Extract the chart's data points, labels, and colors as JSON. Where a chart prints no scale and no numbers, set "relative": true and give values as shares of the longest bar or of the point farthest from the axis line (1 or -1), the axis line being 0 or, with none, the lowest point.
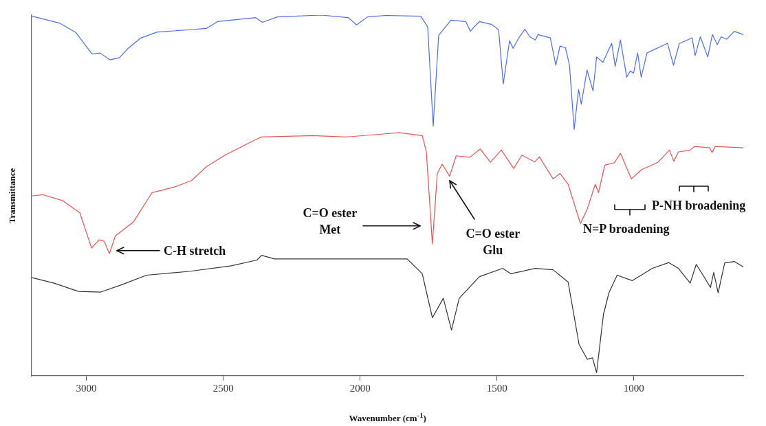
{
  "chart_data": {
    "type": "line",
    "relative": true,
    "xlabel": "Wavenumber (cm$^{-1}$)",
    "ylabel": "Transmittance",
    "xlim": [
      3200,
      600
    ],
    "xticks": [
      3000,
      2500,
      2000,
      1500,
      1000
    ],
    "tick_labels": "x",
    "grid": false,
    "legend": false,
    "marker": "none",
    "line_style": "solid",
    "series": [
      {
        "color": "#4a6cf7",
        "x": [
          3198,
          3098,
          3039,
          2979,
          2950,
          2914,
          2879,
          2849,
          2800,
          2741,
          2630,
          2562,
          2521,
          2382,
          2357,
          2302,
          2143,
          2043,
          2013,
          1973,
          1907,
          1778,
          1753,
          1733,
          1713,
          1668,
          1614,
          1597,
          1584,
          1564,
          1519,
          1494,
          1477,
          1454,
          1441,
          1420,
          1398,
          1380,
          1360,
          1350,
          1305,
          1285,
          1270,
          1250,
          1235,
          1218,
          1202,
          1192,
          1171,
          1149,
          1136,
          1113,
          1081,
          1068,
          1049,
          1026,
          1013,
          1001,
          986,
          973,
          952,
          877,
          855,
          834,
          787,
          776,
          757,
          730,
          713,
          695,
          681,
          661,
          633,
          600
        ],
        "values": [
          0.997,
          0.978,
          0.952,
          0.892,
          0.895,
          0.876,
          0.882,
          0.907,
          0.937,
          0.953,
          0.959,
          0.963,
          0.982,
          0.993,
          0.98,
          0.995,
          1.0,
          0.993,
          0.973,
          0.995,
          0.999,
          0.997,
          0.967,
          0.692,
          0.944,
          0.986,
          0.982,
          0.955,
          0.967,
          0.982,
          0.974,
          0.959,
          0.809,
          0.929,
          0.908,
          0.937,
          0.961,
          0.94,
          0.931,
          0.946,
          0.937,
          0.861,
          0.914,
          0.91,
          0.861,
          0.683,
          0.794,
          0.753,
          0.848,
          0.79,
          0.884,
          0.869,
          0.922,
          0.858,
          0.931,
          0.828,
          0.845,
          0.839,
          0.895,
          0.828,
          0.895,
          0.922,
          0.861,
          0.921,
          0.937,
          0.888,
          0.94,
          0.884,
          0.946,
          0.918,
          0.94,
          0.933,
          0.955,
          0.946
        ]
      },
      {
        "color": "#f05050",
        "x": [
          3198,
          3158,
          3088,
          3024,
          2981,
          2954,
          2935,
          2916,
          2894,
          2829,
          2760,
          2680,
          2615,
          2561,
          2491,
          2421,
          2362,
          2173,
          2053,
          1907,
          1858,
          1773,
          1758,
          1736,
          1718,
          1700,
          1673,
          1649,
          1599,
          1561,
          1524,
          1484,
          1439,
          1409,
          1362,
          1345,
          1295,
          1270,
          1240,
          1195,
          1170,
          1141,
          1129,
          1106,
          1071,
          1049,
          1009,
          971,
          912,
          870,
          854,
          837,
          797,
          777,
          723,
          714,
          703,
          600
        ],
        "values": [
          0.499,
          0.502,
          0.486,
          0.452,
          0.354,
          0.377,
          0.373,
          0.339,
          0.388,
          0.426,
          0.508,
          0.523,
          0.542,
          0.58,
          0.613,
          0.64,
          0.662,
          0.666,
          0.662,
          0.671,
          0.674,
          0.666,
          0.621,
          0.366,
          0.561,
          0.587,
          0.553,
          0.61,
          0.606,
          0.629,
          0.592,
          0.626,
          0.575,
          0.612,
          0.593,
          0.607,
          0.546,
          0.561,
          0.531,
          0.422,
          0.463,
          0.531,
          0.508,
          0.584,
          0.591,
          0.617,
          0.546,
          0.572,
          0.592,
          0.626,
          0.595,
          0.621,
          0.625,
          0.636,
          0.632,
          0.619,
          0.636,
          0.632
        ]
      },
      {
        "color": "#333333",
        "x": [
          3198,
          3118,
          3029,
          2949,
          2869,
          2780,
          2620,
          2471,
          2377,
          2360,
          2312,
          1907,
          1828,
          1773,
          1736,
          1696,
          1666,
          1638,
          1564,
          1479,
          1449,
          1360,
          1295,
          1240,
          1200,
          1170,
          1151,
          1136,
          1111,
          1091,
          1061,
          1006,
          932,
          872,
          837,
          794,
          772,
          747,
          720,
          708,
          692,
          668,
          633,
          600
        ],
        "values": [
          0.272,
          0.257,
          0.234,
          0.232,
          0.253,
          0.279,
          0.29,
          0.305,
          0.321,
          0.334,
          0.324,
          0.324,
          0.324,
          0.283,
          0.161,
          0.215,
          0.127,
          0.215,
          0.275,
          0.298,
          0.283,
          0.298,
          0.294,
          0.26,
          0.087,
          0.046,
          0.05,
          0.009,
          0.17,
          0.23,
          0.279,
          0.264,
          0.298,
          0.314,
          0.298,
          0.257,
          0.309,
          0.279,
          0.245,
          0.287,
          0.23,
          0.313,
          0.317,
          0.302
        ]
      }
    ],
    "annotations": [
      "C-H stretch",
      "C=O ester\nMet",
      "C=O ester\nGlu",
      "N=P broadening",
      "P-NH broadening"
    ]
  }
}
